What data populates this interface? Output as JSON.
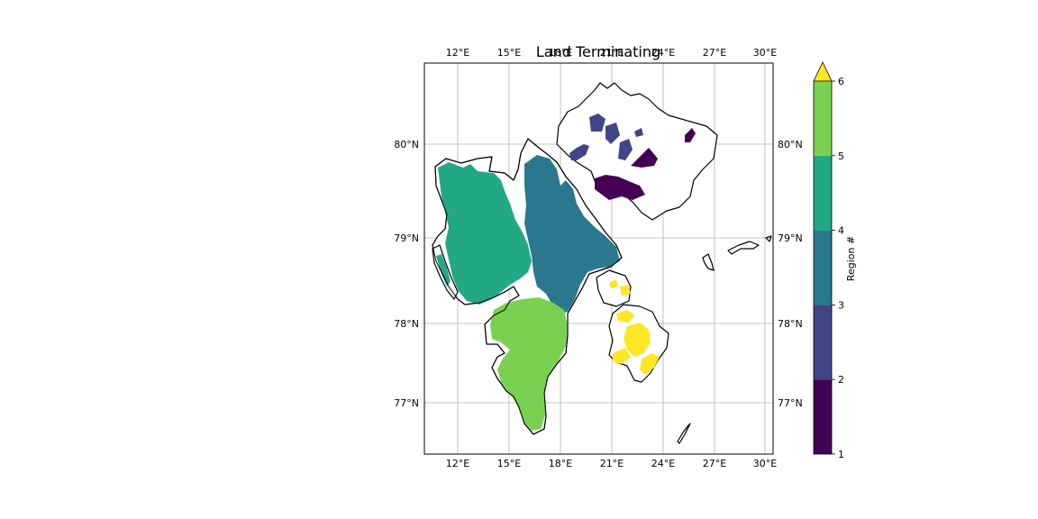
{
  "title": "Land Terminating",
  "map": {
    "lon_ticks": [
      "12°E",
      "15°E",
      "18°E",
      "21°E",
      "24°E",
      "27°E",
      "30°E"
    ],
    "lat_ticks": [
      "80°N",
      "79°N",
      "78°N",
      "77°N"
    ],
    "grid": true,
    "coastline_color": "#000000"
  },
  "colorbar": {
    "label": "Region #",
    "ticks": [
      "1",
      "2",
      "3",
      "4",
      "5",
      "6"
    ],
    "extend": "max",
    "extend_color": "#fde725",
    "colors": [
      "#440154",
      "#414487",
      "#2a788e",
      "#22a884",
      "#7ad151"
    ]
  },
  "regions": [
    {
      "value": 1,
      "color": "#440154"
    },
    {
      "value": 2,
      "color": "#414487"
    },
    {
      "value": 3,
      "color": "#2a788e"
    },
    {
      "value": 4,
      "color": "#22a884"
    },
    {
      "value": 5,
      "color": "#7ad151"
    },
    {
      "value": 6,
      "color": "#fde725"
    }
  ]
}
